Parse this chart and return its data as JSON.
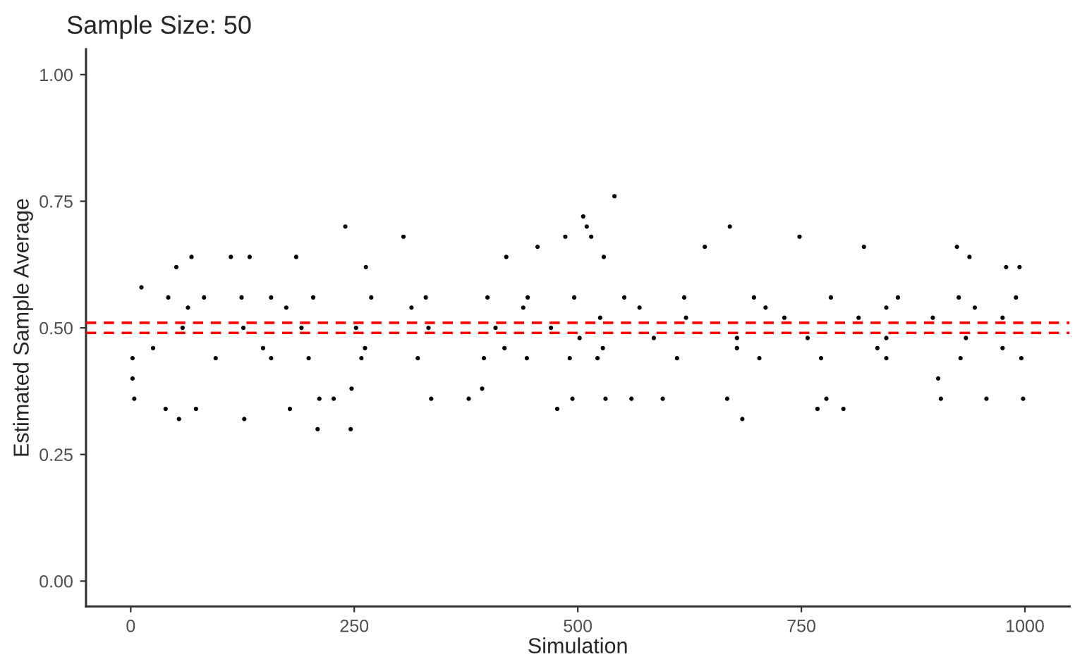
{
  "chart_data": {
    "type": "scatter",
    "title": "Sample Size: 50",
    "xlabel": "Simulation",
    "ylabel": "Estimated Sample Average",
    "series": [
      {
        "color": "#000000",
        "x": [
          4,
          2,
          12,
          51,
          68,
          54,
          39,
          73,
          112,
          133,
          127,
          185,
          178,
          209,
          246,
          240,
          305,
          263,
          211,
          227,
          247,
          336,
          378,
          393,
          420,
          455,
          477,
          486,
          506,
          510,
          515,
          541,
          529,
          494,
          531,
          560,
          595,
          642,
          670,
          684,
          667,
          748,
          768,
          797,
          778,
          820,
          906,
          924,
          938,
          957,
          998,
          994,
          979,
          903,
          42,
          82,
          124,
          157,
          204,
          269,
          330,
          399,
          444,
          2,
          95,
          157,
          199,
          258,
          321,
          395,
          443,
          491,
          58,
          126,
          191,
          252,
          333,
          408,
          470,
          496,
          552,
          619,
          697,
          783,
          858,
          926,
          990,
          522,
          611,
          703,
          772,
          845,
          928,
          996,
          525,
          621,
          731,
          814,
          897,
          975,
          502,
          585,
          678,
          757,
          845,
          934,
          25,
          148,
          262,
          418,
          528,
          678,
          835,
          975,
          64,
          174,
          314,
          439,
          569,
          710,
          845,
          944
        ],
        "values": [
          0.36,
          0.4,
          0.58,
          0.62,
          0.64,
          0.32,
          0.34,
          0.34,
          0.64,
          0.64,
          0.32,
          0.64,
          0.34,
          0.3,
          0.3,
          0.7,
          0.68,
          0.62,
          0.36,
          0.36,
          0.38,
          0.36,
          0.36,
          0.38,
          0.64,
          0.66,
          0.34,
          0.68,
          0.72,
          0.7,
          0.68,
          0.76,
          0.64,
          0.36,
          0.36,
          0.36,
          0.36,
          0.66,
          0.7,
          0.32,
          0.36,
          0.68,
          0.34,
          0.34,
          0.36,
          0.66,
          0.36,
          0.66,
          0.64,
          0.36,
          0.36,
          0.62,
          0.62,
          0.4,
          0.56,
          0.56,
          0.56,
          0.56,
          0.56,
          0.56,
          0.56,
          0.56,
          0.56,
          0.44,
          0.44,
          0.44,
          0.44,
          0.44,
          0.44,
          0.44,
          0.44,
          0.44,
          0.5,
          0.5,
          0.5,
          0.5,
          0.5,
          0.5,
          0.5,
          0.56,
          0.56,
          0.56,
          0.56,
          0.56,
          0.56,
          0.56,
          0.56,
          0.44,
          0.44,
          0.44,
          0.44,
          0.44,
          0.44,
          0.44,
          0.52,
          0.52,
          0.52,
          0.52,
          0.52,
          0.52,
          0.48,
          0.48,
          0.48,
          0.48,
          0.48,
          0.48,
          0.46,
          0.46,
          0.46,
          0.46,
          0.46,
          0.46,
          0.46,
          0.46,
          0.54,
          0.54,
          0.54,
          0.54,
          0.54,
          0.54,
          0.54,
          0.54
        ]
      }
    ],
    "marker": "circle",
    "xlim": [
      -50,
      1050
    ],
    "ylim": [
      -0.05,
      1.05
    ],
    "xticks": [
      0,
      250,
      500,
      750,
      1000
    ],
    "yticks": [
      {
        "value": 0,
        "label": "0.00"
      },
      {
        "value": 0.25,
        "label": "0.25"
      },
      {
        "value": 0.5,
        "label": "0.50"
      },
      {
        "value": 0.75,
        "label": "0.75"
      },
      {
        "value": 1,
        "label": "1.00"
      }
    ],
    "ref_lines": [
      {
        "axis": "y",
        "value": 0.51,
        "color": "#ff0000",
        "line_style": "dashed"
      },
      {
        "axis": "y",
        "value": 0.49,
        "color": "#ff0000",
        "line_style": "dashed"
      }
    ],
    "grid": false,
    "legend": false
  }
}
